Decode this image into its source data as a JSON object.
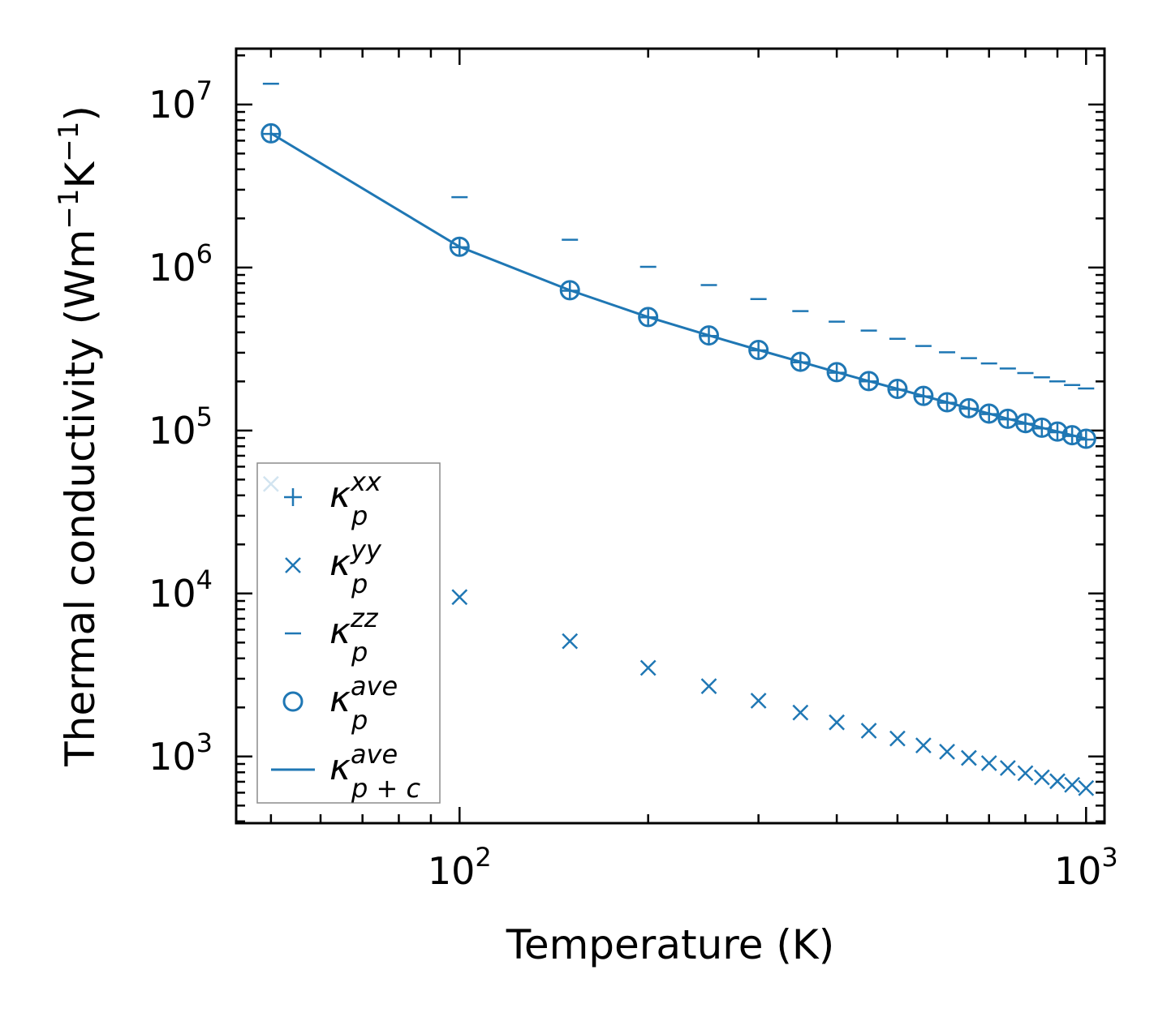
{
  "chart_data": {
    "type": "scatter",
    "xscale": "log",
    "yscale": "log",
    "xlim": [
      44,
      1070
    ],
    "ylim": [
      390,
      22000000
    ],
    "xlabel": "Temperature (K)",
    "ylabel": {
      "prefix": "Thermal conductivity (Wm",
      "exp1": "−1",
      "mid": "K",
      "exp2": "−1",
      "suffix": ")"
    },
    "x_ticks": [
      {
        "value": 100,
        "base": "10",
        "exp": "2"
      },
      {
        "value": 1000,
        "base": "10",
        "exp": "3"
      }
    ],
    "y_ticks": [
      {
        "value": 1000,
        "base": "10",
        "exp": "3"
      },
      {
        "value": 10000,
        "base": "10",
        "exp": "4"
      },
      {
        "value": 100000,
        "base": "10",
        "exp": "5"
      },
      {
        "value": 1000000,
        "base": "10",
        "exp": "6"
      },
      {
        "value": 10000000,
        "base": "10",
        "exp": "7"
      }
    ],
    "x": [
      50,
      100,
      150,
      200,
      250,
      300,
      350,
      400,
      450,
      500,
      550,
      600,
      650,
      700,
      750,
      800,
      850,
      900,
      950,
      1000
    ],
    "series": [
      {
        "name": "kappa_p_xx",
        "symbol": "κ",
        "sub": "p",
        "sup": "xx",
        "marker": "plus",
        "values": [
          6600000,
          1330000,
          720000,
          495000,
          380000,
          310000,
          262000,
          226000,
          200000,
          178000,
          162000,
          148000,
          136000,
          126000,
          117000,
          110000,
          103000,
          97500,
          92500,
          88000
        ]
      },
      {
        "name": "kappa_p_yy",
        "symbol": "κ",
        "sub": "p",
        "sup": "yy",
        "marker": "x",
        "values": [
          47000,
          9500,
          5100,
          3500,
          2700,
          2200,
          1860,
          1620,
          1440,
          1290,
          1170,
          1070,
          980,
          910,
          850,
          790,
          745,
          705,
          670,
          640
        ]
      },
      {
        "name": "kappa_p_zz",
        "symbol": "κ",
        "sub": "p",
        "sup": "zz",
        "marker": "hline",
        "values": [
          13400000,
          2700000,
          1480000,
          1010000,
          780000,
          640000,
          540000,
          465000,
          410000,
          365000,
          330000,
          302000,
          278000,
          258000,
          240000,
          225000,
          212000,
          200000,
          190000,
          181000
        ]
      },
      {
        "name": "kappa_p_ave",
        "symbol": "κ",
        "sub": "p",
        "sup": "ave",
        "marker": "circle",
        "values": [
          6650000,
          1340000,
          725000,
          497000,
          383000,
          312000,
          264000,
          228000,
          201000,
          180000,
          163000,
          149000,
          137000,
          127000,
          118000,
          111000,
          104000,
          98500,
          93500,
          89000
        ]
      },
      {
        "name": "kappa_pc_ave",
        "symbol": "κ",
        "sub": "p + c",
        "sup": "ave",
        "marker": "line",
        "values": [
          6650000,
          1340000,
          725000,
          497000,
          383000,
          312000,
          264000,
          228000,
          201000,
          180000,
          163000,
          149000,
          137000,
          127000,
          118000,
          111000,
          104000,
          98500,
          93500,
          89000
        ]
      }
    ],
    "legend": {
      "position": "lower-left"
    },
    "color": "#1f77b4",
    "grid": false
  }
}
